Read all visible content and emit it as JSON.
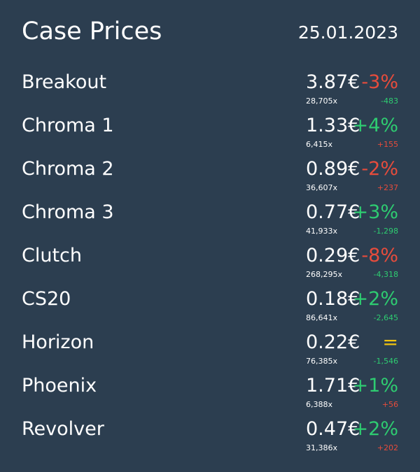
{
  "header": {
    "title": "Case Prices",
    "date": "25.01.2023"
  },
  "colors": {
    "background": "#2c3e50",
    "text": "#ffffff"
  },
  "rows": [
    {
      "name": "Breakout",
      "price": "3.87€",
      "change": "-3%",
      "change_color": "#e74c3c",
      "volume": "28,705x",
      "volume_change": "-483",
      "volume_change_color": "#2ecc71"
    },
    {
      "name": "Chroma 1",
      "price": "1.33€",
      "change": "+4%",
      "change_color": "#2ecc71",
      "volume": "6,415x",
      "volume_change": "+155",
      "volume_change_color": "#e74c3c"
    },
    {
      "name": "Chroma 2",
      "price": "0.89€",
      "change": "-2%",
      "change_color": "#e74c3c",
      "volume": "36,607x",
      "volume_change": "+237",
      "volume_change_color": "#e74c3c"
    },
    {
      "name": "Chroma 3",
      "price": "0.77€",
      "change": "+3%",
      "change_color": "#2ecc71",
      "volume": "41,933x",
      "volume_change": "-1,298",
      "volume_change_color": "#2ecc71"
    },
    {
      "name": "Clutch",
      "price": "0.29€",
      "change": "-8%",
      "change_color": "#e74c3c",
      "volume": "268,295x",
      "volume_change": "-4,318",
      "volume_change_color": "#2ecc71"
    },
    {
      "name": "CS20",
      "price": "0.18€",
      "change": "+2%",
      "change_color": "#2ecc71",
      "volume": "86,641x",
      "volume_change": "-2,645",
      "volume_change_color": "#2ecc71"
    },
    {
      "name": "Horizon",
      "price": "0.22€",
      "change": "=",
      "change_color": "#f1c40f",
      "volume": "76,385x",
      "volume_change": "-1,546",
      "volume_change_color": "#2ecc71"
    },
    {
      "name": "Phoenix",
      "price": "1.71€",
      "change": "+1%",
      "change_color": "#2ecc71",
      "volume": "6,388x",
      "volume_change": "+56",
      "volume_change_color": "#e74c3c"
    },
    {
      "name": "Revolver",
      "price": "0.47€",
      "change": "+2%",
      "change_color": "#2ecc71",
      "volume": "31,386x",
      "volume_change": "+202",
      "volume_change_color": "#e74c3c"
    }
  ]
}
